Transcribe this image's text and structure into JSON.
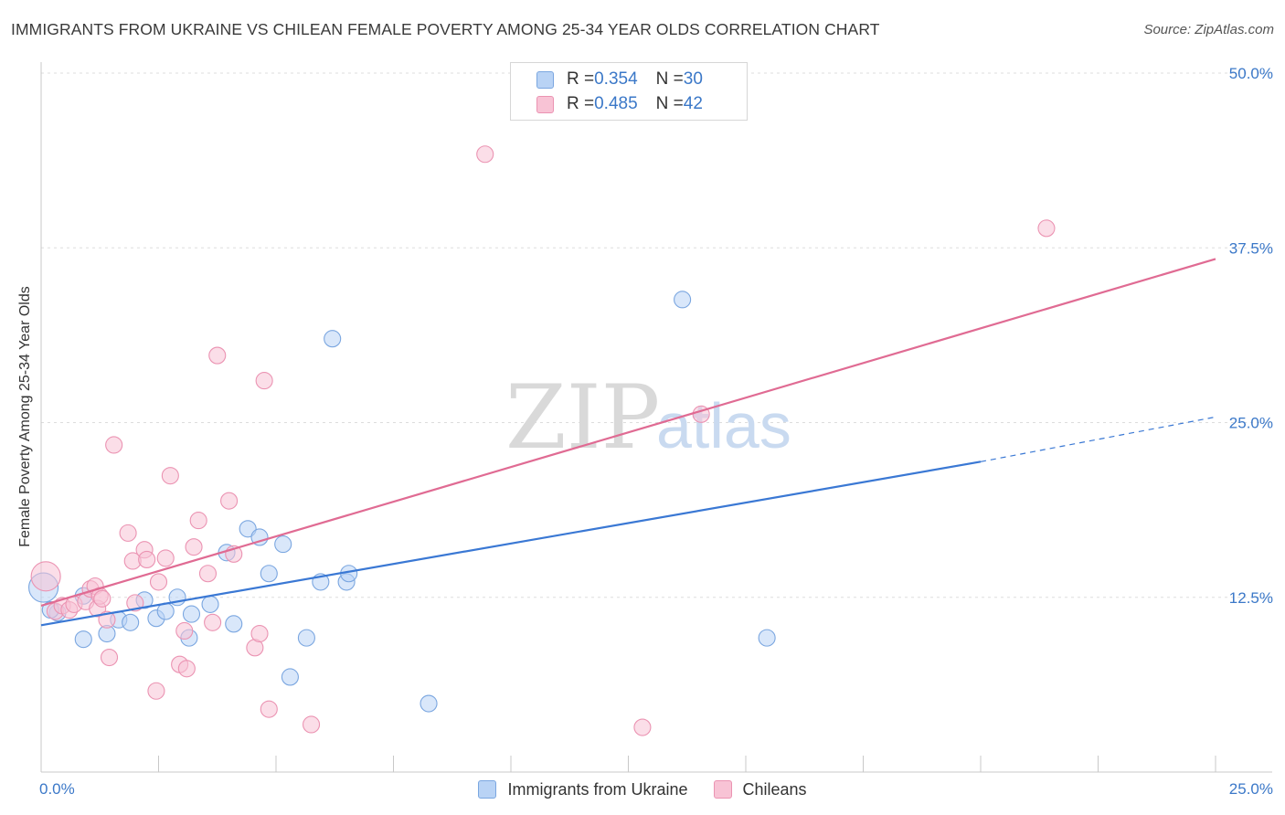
{
  "title": "IMMIGRANTS FROM UKRAINE VS CHILEAN FEMALE POVERTY AMONG 25-34 YEAR OLDS CORRELATION CHART",
  "source": "Source: ZipAtlas.com",
  "watermark": {
    "zip": "ZIP",
    "atlas": "atlas"
  },
  "colors": {
    "blue": "#3a78d4",
    "blue_fill": "#b9d3f5",
    "pink": "#e06b93",
    "pink_fill": "#f8c3d5",
    "tick_text": "#3b78c8",
    "grid": "#dddddd"
  },
  "legend_top": [
    {
      "r_label": "R = ",
      "r_value": "0.354",
      "n_label": "N = ",
      "n_value": "30"
    },
    {
      "r_label": "R = ",
      "r_value": "0.485",
      "n_label": "N = ",
      "n_value": "42"
    }
  ],
  "legend_bottom": [
    "Immigrants from Ukraine",
    "Chileans"
  ],
  "chart_data": {
    "type": "scatter",
    "title": "IMMIGRANTS FROM UKRAINE VS CHILEAN FEMALE POVERTY AMONG 25-34 YEAR OLDS CORRELATION CHART",
    "xlabel": "",
    "ylabel": "Female Poverty Among 25-34 Year Olds",
    "xlim": [
      0,
      25
    ],
    "ylim": [
      0,
      50
    ],
    "x_tick_labels": [
      "0.0%",
      "25.0%"
    ],
    "y_ticks": [
      12.5,
      25.0,
      37.5,
      50.0
    ],
    "y_tick_labels": [
      "12.5%",
      "25.0%",
      "37.5%",
      "50.0%"
    ],
    "grid": true,
    "series": [
      {
        "name": "Immigrants from Ukraine",
        "color": "#3a78d4",
        "trend": {
          "x0": 0,
          "y0": 10.5,
          "x1": 20,
          "y1": 22.2,
          "dashed_to_x": 25,
          "dashed_to_y": 25.4
        },
        "points": [
          [
            0.05,
            13.2,
            16
          ],
          [
            0.35,
            11.4,
            9
          ],
          [
            0.9,
            12.6,
            9
          ],
          [
            0.9,
            9.5,
            9
          ],
          [
            1.4,
            9.9,
            9
          ],
          [
            1.65,
            10.9,
            9
          ],
          [
            1.9,
            10.7,
            9
          ],
          [
            2.2,
            12.3,
            9
          ],
          [
            2.45,
            11.0,
            9
          ],
          [
            2.65,
            11.5,
            9
          ],
          [
            2.9,
            12.5,
            9
          ],
          [
            3.15,
            9.6,
            9
          ],
          [
            3.2,
            11.3,
            9
          ],
          [
            3.6,
            12.0,
            9
          ],
          [
            3.95,
            15.7,
            9
          ],
          [
            4.1,
            10.6,
            9
          ],
          [
            4.4,
            17.4,
            9
          ],
          [
            4.65,
            16.8,
            9
          ],
          [
            4.85,
            14.2,
            9
          ],
          [
            5.15,
            16.3,
            9
          ],
          [
            5.3,
            6.8,
            9
          ],
          [
            5.65,
            9.6,
            9
          ],
          [
            5.95,
            13.6,
            9
          ],
          [
            6.2,
            31.0,
            9
          ],
          [
            6.5,
            13.6,
            9
          ],
          [
            6.55,
            14.2,
            9
          ],
          [
            8.25,
            4.9,
            9
          ],
          [
            13.65,
            33.8,
            9
          ],
          [
            15.45,
            9.6,
            9
          ],
          [
            0.2,
            11.6,
            9
          ]
        ]
      },
      {
        "name": "Chileans",
        "color": "#e06b93",
        "trend": {
          "x0": 0,
          "y0": 11.9,
          "x1": 25,
          "y1": 36.7
        },
        "points": [
          [
            0.1,
            14.0,
            16
          ],
          [
            0.3,
            11.5,
            9
          ],
          [
            0.45,
            11.9,
            9
          ],
          [
            0.6,
            11.6,
            9
          ],
          [
            0.7,
            12.0,
            9
          ],
          [
            0.95,
            12.2,
            9
          ],
          [
            1.05,
            13.1,
            9
          ],
          [
            1.15,
            13.3,
            9
          ],
          [
            1.2,
            11.7,
            9
          ],
          [
            1.25,
            12.6,
            9
          ],
          [
            1.3,
            12.4,
            9
          ],
          [
            1.4,
            10.9,
            9
          ],
          [
            1.45,
            8.2,
            9
          ],
          [
            1.55,
            23.4,
            9
          ],
          [
            1.85,
            17.1,
            9
          ],
          [
            1.95,
            15.1,
            9
          ],
          [
            2.0,
            12.1,
            9
          ],
          [
            2.2,
            15.9,
            9
          ],
          [
            2.25,
            15.2,
            9
          ],
          [
            2.45,
            5.8,
            9
          ],
          [
            2.5,
            13.6,
            9
          ],
          [
            2.65,
            15.3,
            9
          ],
          [
            2.75,
            21.2,
            9
          ],
          [
            2.95,
            7.7,
            9
          ],
          [
            3.05,
            10.1,
            9
          ],
          [
            3.1,
            7.4,
            9
          ],
          [
            3.25,
            16.1,
            9
          ],
          [
            3.35,
            18.0,
            9
          ],
          [
            3.55,
            14.2,
            9
          ],
          [
            3.65,
            10.7,
            9
          ],
          [
            3.75,
            29.8,
            9
          ],
          [
            4.0,
            19.4,
            9
          ],
          [
            4.1,
            15.6,
            9
          ],
          [
            4.55,
            8.9,
            9
          ],
          [
            4.65,
            9.9,
            9
          ],
          [
            4.75,
            28.0,
            9
          ],
          [
            4.85,
            4.5,
            9
          ],
          [
            5.75,
            3.4,
            9
          ],
          [
            9.45,
            44.2,
            9
          ],
          [
            12.8,
            3.2,
            9
          ],
          [
            14.05,
            25.6,
            9
          ],
          [
            21.4,
            38.9,
            9
          ]
        ]
      }
    ]
  }
}
